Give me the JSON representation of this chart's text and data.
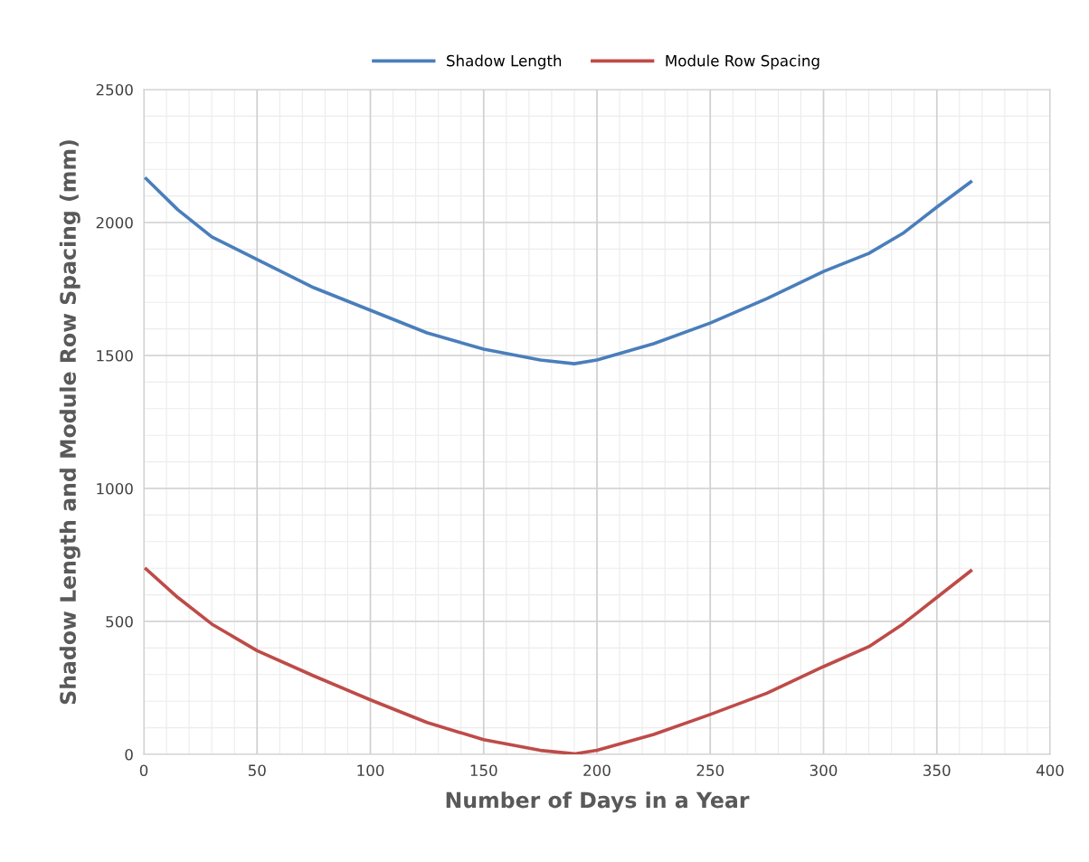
{
  "chart_data": {
    "type": "line",
    "xlabel": "Number of Days in a Year",
    "ylabel": "Shadow Length and Module Row Spacing (mm)",
    "x": [
      1,
      15,
      30,
      50,
      75,
      100,
      125,
      150,
      175,
      190,
      200,
      225,
      250,
      275,
      300,
      320,
      335,
      350,
      365
    ],
    "series": [
      {
        "name": "Shadow Length",
        "color": "#4a7ebb",
        "values": [
          2165,
          2048,
          1946,
          1861,
          1755,
          1670,
          1585,
          1524,
          1483,
          1469,
          1483,
          1544,
          1622,
          1714,
          1816,
          1884,
          1959,
          2058,
          2153
        ]
      },
      {
        "name": "Module Row Spacing",
        "color": "#be4b48",
        "values": [
          697,
          590,
          490,
          390,
          295,
          205,
          120,
          55,
          15,
          2,
          15,
          75,
          150,
          230,
          330,
          405,
          490,
          590,
          690
        ]
      }
    ],
    "xlim": [
      0,
      400
    ],
    "xticks": [
      0,
      50,
      100,
      150,
      200,
      250,
      300,
      350,
      400
    ],
    "ylim": [
      0,
      2500
    ],
    "yticks": [
      0,
      500,
      1000,
      1500,
      2000,
      2500
    ],
    "grid": true,
    "legend": "top",
    "marker": "none",
    "line_style": "solid"
  }
}
